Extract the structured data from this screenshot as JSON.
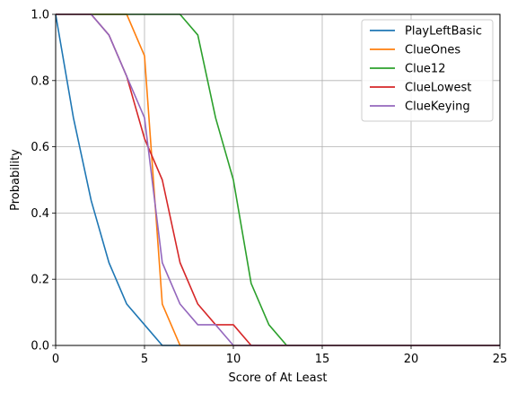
{
  "chart_data": {
    "type": "line",
    "title": "",
    "xlabel": "Score of At Least",
    "ylabel": "Probability",
    "xlim": [
      0,
      25
    ],
    "ylim": [
      0,
      1
    ],
    "xticks": [
      0,
      5,
      10,
      15,
      20,
      25
    ],
    "yticks": [
      0.0,
      0.2,
      0.4,
      0.6,
      0.8,
      1.0
    ],
    "xtick_labels": [
      "0",
      "5",
      "10",
      "15",
      "20",
      "25"
    ],
    "ytick_labels": [
      "0.0",
      "0.2",
      "0.4",
      "0.6",
      "0.8",
      "1.0"
    ],
    "grid": true,
    "legend_position": "upper right",
    "series": [
      {
        "name": "PlayLeftBasic",
        "color": "#1f77b4",
        "x": [
          0,
          1,
          2,
          3,
          4,
          5,
          6,
          7,
          8,
          9,
          10,
          11,
          12,
          13,
          14,
          15,
          16,
          17,
          18,
          19,
          20,
          21,
          22,
          23,
          24,
          25
        ],
        "y": [
          1.0,
          0.6875,
          0.4375,
          0.25,
          0.125,
          0.0625,
          0.0,
          0,
          0,
          0,
          0,
          0,
          0,
          0,
          0,
          0,
          0,
          0,
          0,
          0,
          0,
          0,
          0,
          0,
          0,
          0
        ]
      },
      {
        "name": "ClueOnes",
        "color": "#ff7f0e",
        "x": [
          0,
          1,
          2,
          3,
          4,
          5,
          6,
          7,
          8,
          9,
          10,
          11,
          12,
          13,
          14,
          15,
          16,
          17,
          18,
          19,
          20,
          21,
          22,
          23,
          24,
          25
        ],
        "y": [
          1.0,
          1.0,
          1.0,
          1.0,
          1.0,
          0.875,
          0.125,
          0.0,
          0,
          0,
          0,
          0,
          0,
          0,
          0,
          0,
          0,
          0,
          0,
          0,
          0,
          0,
          0,
          0,
          0,
          0
        ]
      },
      {
        "name": "Clue12",
        "color": "#2ca02c",
        "x": [
          0,
          1,
          2,
          3,
          4,
          5,
          6,
          7,
          8,
          9,
          10,
          11,
          12,
          13,
          14,
          15,
          16,
          17,
          18,
          19,
          20,
          21,
          22,
          23,
          24,
          25
        ],
        "y": [
          1.0,
          1.0,
          1.0,
          1.0,
          1.0,
          1.0,
          1.0,
          1.0,
          0.9375,
          0.6875,
          0.5,
          0.1875,
          0.0625,
          0.0,
          0,
          0,
          0,
          0,
          0,
          0,
          0,
          0,
          0,
          0,
          0,
          0
        ]
      },
      {
        "name": "ClueLowest",
        "color": "#d62728",
        "x": [
          0,
          1,
          2,
          3,
          4,
          5,
          6,
          7,
          8,
          9,
          10,
          11,
          12,
          13,
          14,
          15,
          16,
          17,
          18,
          19,
          20,
          21,
          22,
          23,
          24,
          25
        ],
        "y": [
          1.0,
          1.0,
          1.0,
          0.9375,
          0.8125,
          0.625,
          0.5,
          0.25,
          0.125,
          0.0625,
          0.0625,
          0.0,
          0,
          0,
          0,
          0,
          0,
          0,
          0,
          0,
          0,
          0,
          0,
          0,
          0,
          0
        ]
      },
      {
        "name": "ClueKeying",
        "color": "#9467bd",
        "x": [
          0,
          1,
          2,
          3,
          4,
          5,
          6,
          7,
          8,
          9,
          10,
          11,
          12,
          13,
          14,
          15,
          16,
          17,
          18,
          19,
          20,
          21,
          22,
          23,
          24,
          25
        ],
        "y": [
          1.0,
          1.0,
          1.0,
          0.9375,
          0.8125,
          0.6875,
          0.25,
          0.125,
          0.0625,
          0.0625,
          0.0,
          0,
          0,
          0,
          0,
          0,
          0,
          0,
          0,
          0,
          0,
          0,
          0,
          0,
          0,
          0
        ]
      }
    ]
  }
}
